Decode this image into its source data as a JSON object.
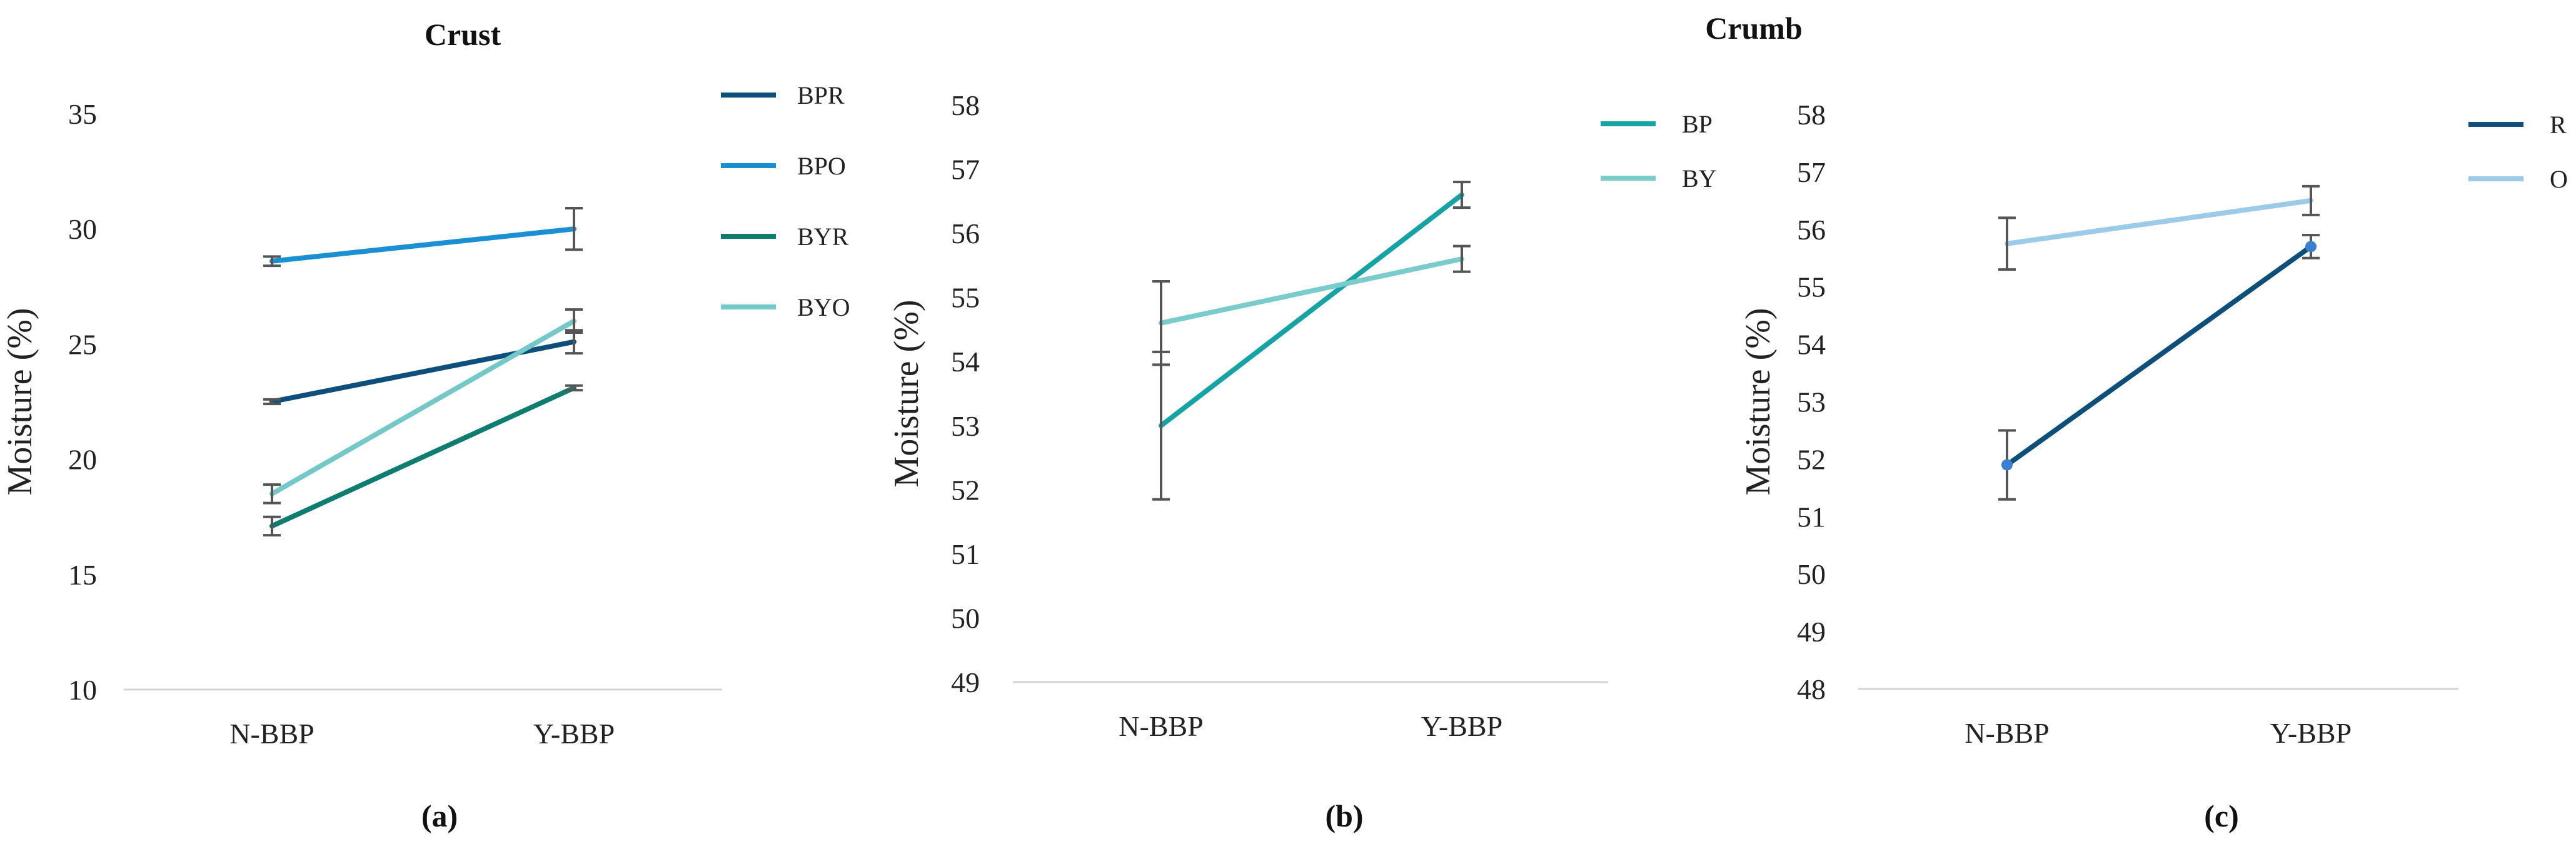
{
  "figure_title": "Crumb",
  "chart_data": [
    {
      "type": "line",
      "panel_label": "(a)",
      "title": "Crust",
      "xlabel": "",
      "ylabel": "Moisture (%)",
      "categories": [
        "N-BBP",
        "Y-BBP"
      ],
      "ylim": [
        10,
        35
      ],
      "yticks": [
        10,
        15,
        20,
        25,
        30,
        35
      ],
      "legend_position": "right",
      "grid": false,
      "series": [
        {
          "name": "BPR",
          "color": "#0d4f7a",
          "values": [
            22.5,
            25.1
          ],
          "errors": [
            0.1,
            0.5
          ]
        },
        {
          "name": "BPO",
          "color": "#1b8fd2",
          "values": [
            28.6,
            30.0
          ],
          "errors": [
            0.2,
            0.9
          ]
        },
        {
          "name": "BYR",
          "color": "#0e7c6e",
          "values": [
            17.1,
            23.1
          ],
          "errors": [
            0.4,
            0.1
          ]
        },
        {
          "name": "BYO",
          "color": "#74c8c8",
          "values": [
            18.5,
            26.0
          ],
          "errors": [
            0.4,
            0.5
          ]
        }
      ]
    },
    {
      "type": "line",
      "panel_label": "(b)",
      "title": "",
      "xlabel": "",
      "ylabel": "Moisture (%)",
      "categories": [
        "N-BBP",
        "Y-BBP"
      ],
      "ylim": [
        49,
        58
      ],
      "yticks": [
        49,
        50,
        51,
        52,
        53,
        54,
        55,
        56,
        57,
        58
      ],
      "legend_position": "right",
      "grid": false,
      "series": [
        {
          "name": "BP",
          "color": "#17a3a3",
          "values": [
            53.0,
            56.6
          ],
          "errors": [
            1.15,
            0.2
          ]
        },
        {
          "name": "BY",
          "color": "#7accca",
          "values": [
            54.6,
            55.6
          ],
          "errors": [
            0.65,
            0.2
          ]
        }
      ]
    },
    {
      "type": "line",
      "panel_label": "(c)",
      "title": "",
      "xlabel": "",
      "ylabel": "Moisture (%)",
      "categories": [
        "N-BBP",
        "Y-BBP"
      ],
      "ylim": [
        48,
        58
      ],
      "yticks": [
        48,
        49,
        50,
        51,
        52,
        53,
        54,
        55,
        56,
        57,
        58
      ],
      "legend_position": "right",
      "grid": false,
      "series": [
        {
          "name": "R",
          "color": "#0d4f7a",
          "marker_color": "#3a7fd0",
          "values": [
            51.9,
            55.7
          ],
          "errors": [
            0.6,
            0.2
          ]
        },
        {
          "name": "O",
          "color": "#9ccbe8",
          "marker_color": "",
          "values": [
            55.75,
            56.5
          ],
          "errors": [
            0.45,
            0.25
          ]
        }
      ]
    }
  ]
}
